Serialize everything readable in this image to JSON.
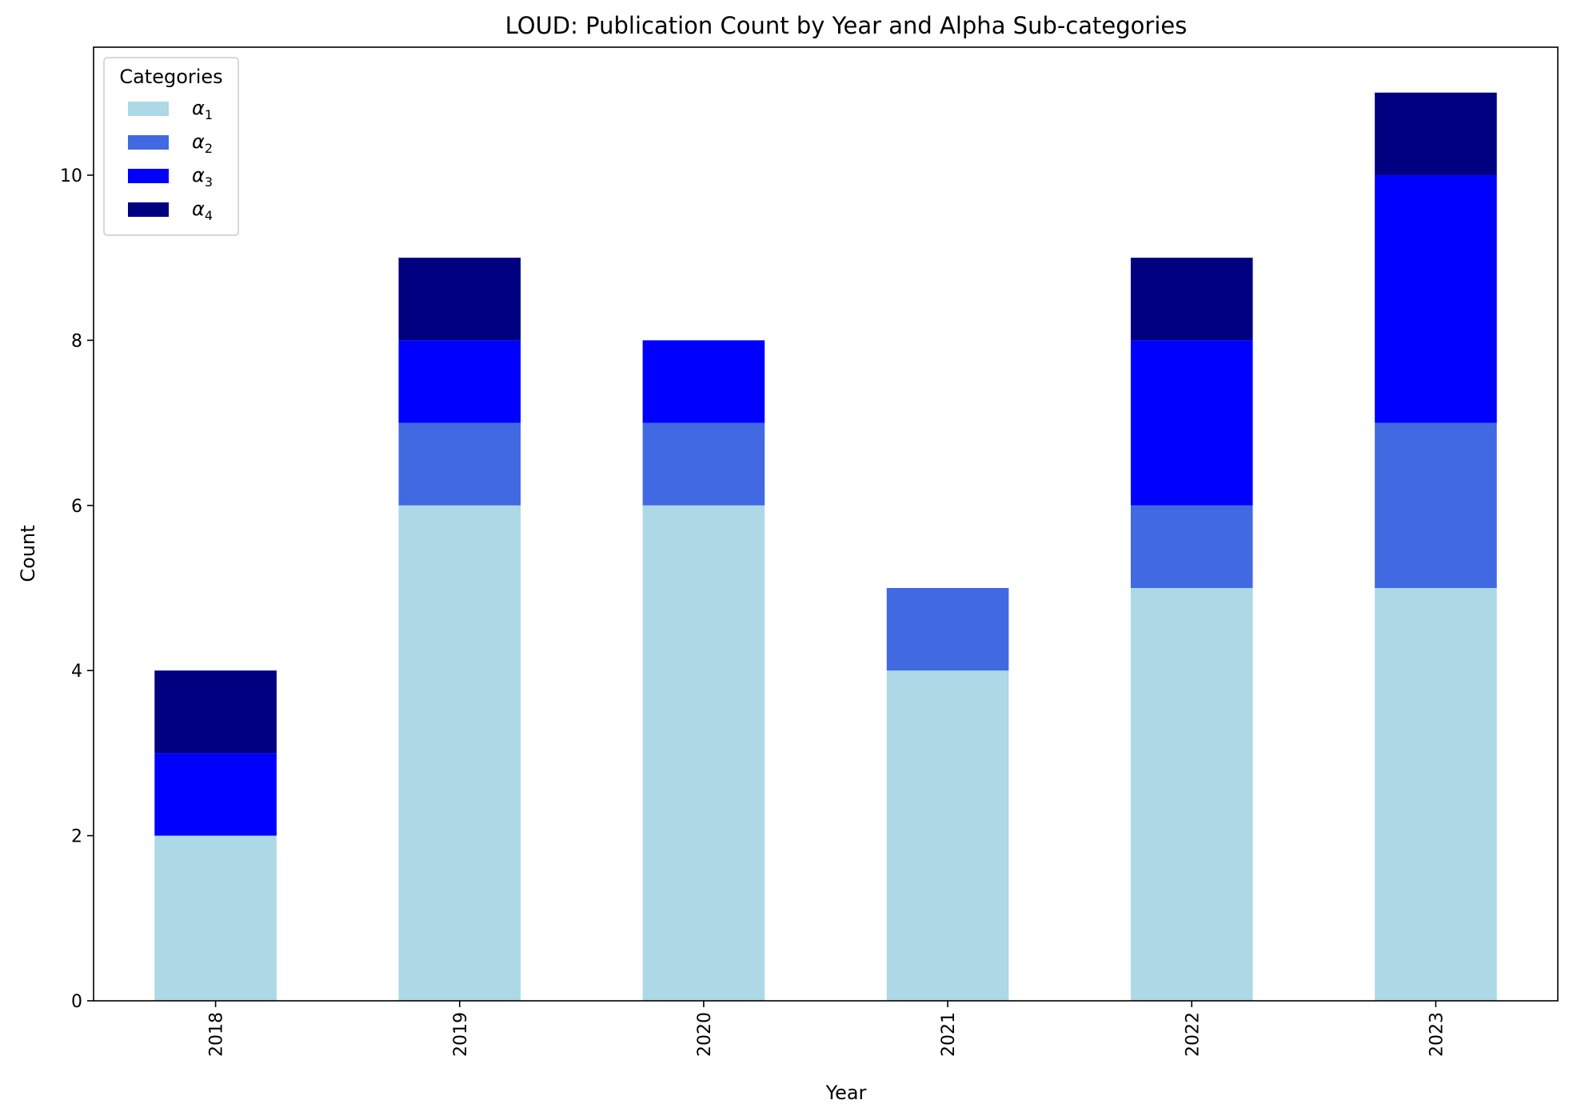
{
  "chart_data": {
    "type": "bar",
    "stacked": true,
    "title": "LOUD: Publication Count by Year and Alpha Sub-categories",
    "xlabel": "Year",
    "ylabel": "Count",
    "categories": [
      "2018",
      "2019",
      "2020",
      "2021",
      "2022",
      "2023"
    ],
    "yticks": [
      "0",
      "2",
      "4",
      "6",
      "8",
      "10"
    ],
    "ylim": [
      0,
      11.55
    ],
    "legend_title": "Categories",
    "legend_position": "upper-left",
    "grid": false,
    "series": [
      {
        "name": "α1",
        "base": "α",
        "sub": "1",
        "color": "#add8e6",
        "values": [
          2,
          6,
          6,
          4,
          5,
          5
        ]
      },
      {
        "name": "α2",
        "base": "α",
        "sub": "2",
        "color": "#4169e1",
        "values": [
          0,
          1,
          1,
          1,
          1,
          2
        ]
      },
      {
        "name": "α3",
        "base": "α",
        "sub": "3",
        "color": "#0000ff",
        "values": [
          1,
          1,
          1,
          0,
          2,
          3
        ]
      },
      {
        "name": "α4",
        "base": "α",
        "sub": "4",
        "color": "#000080",
        "values": [
          1,
          1,
          0,
          0,
          1,
          1
        ]
      }
    ]
  }
}
